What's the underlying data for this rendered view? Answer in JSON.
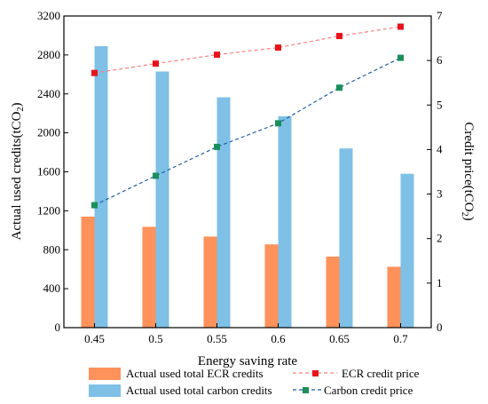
{
  "chart_data": {
    "type": "bar",
    "categories": [
      "0.45",
      "0.5",
      "0.55",
      "0.6",
      "0.65",
      "0.7"
    ],
    "xlabel": "Energy saving rate",
    "ylabel": "Actual used credits(tCO",
    "ylabel_sub": "2",
    "ylabel_end": ")",
    "y2label": "Credit price(tCO",
    "y2label_sub": "2",
    "y2label_end": ")",
    "ylim": [
      0,
      3200
    ],
    "yticks": [
      0,
      400,
      800,
      1200,
      1600,
      2000,
      2400,
      2800,
      3200
    ],
    "y2lim": [
      0,
      7
    ],
    "y2ticks": [
      0,
      1,
      2,
      3,
      4,
      5,
      6,
      7
    ],
    "series": [
      {
        "name": "Actual used total ECR credits",
        "type": "bar",
        "axis": "left",
        "color": "#FF915A",
        "values": [
          1140,
          1035,
          935,
          855,
          730,
          625
        ]
      },
      {
        "name": "Actual used total carbon credits",
        "type": "bar",
        "axis": "left",
        "color": "#7EC0E6",
        "values": [
          2890,
          2630,
          2365,
          2170,
          1840,
          1580
        ]
      },
      {
        "name": "ECR credit price",
        "type": "line",
        "axis": "right",
        "color": "#FF7F7F",
        "marker_color": "#E8141B",
        "values": [
          5.72,
          5.93,
          6.13,
          6.29,
          6.55,
          6.76
        ]
      },
      {
        "name": "Carbon credit price",
        "type": "line",
        "axis": "right",
        "color": "#1E5FA8",
        "marker_color": "#1A8F5A",
        "values": [
          2.75,
          3.41,
          4.06,
          4.59,
          5.39,
          6.06
        ]
      }
    ],
    "grid": false,
    "legend": "bottom"
  }
}
